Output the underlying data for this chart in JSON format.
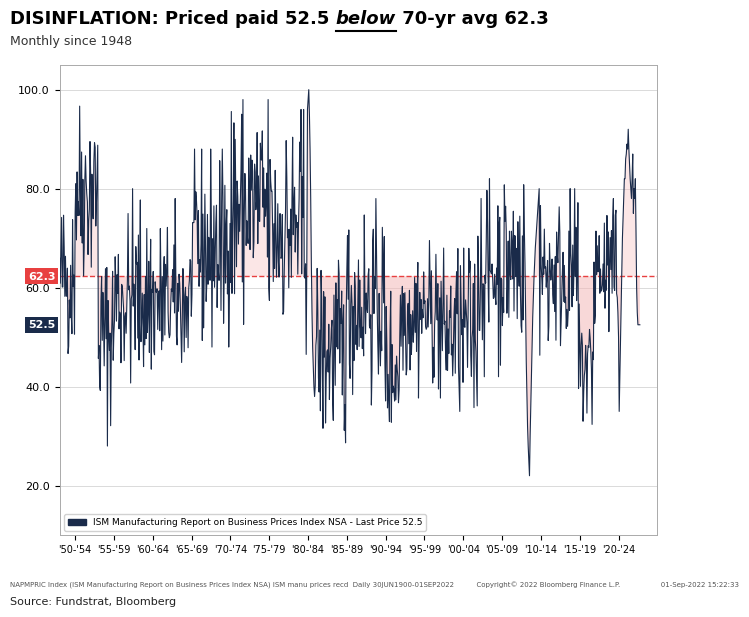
{
  "title_part1": "DISINFLATION: Priced paid 52.5 ",
  "title_underline": "below",
  "title_part2": " 70-yr avg 62.3",
  "subtitle": "Monthly since 1948",
  "avg_line": 62.3,
  "current_val": 52.5,
  "ylabel_values": [
    20.0,
    40.0,
    60.0,
    80.0,
    100.0
  ],
  "line_color": "#1a2b4a",
  "fill_color": "#f4b8b8",
  "avg_line_color": "#e84040",
  "label_62": "62.3",
  "label_52": "52.5",
  "source_text": "Source: Fundstrat, Bloomberg",
  "footnote": "NAPMPRIC Index (ISM Manufacturing Report on Business Prices Index NSA) ISM manu prices recd  Daily 30JUN1900-01SEP2022          Copyright© 2022 Bloomberg Finance L.P.                  01-Sep-2022 15:22:33",
  "legend_label": "ISM Manufacturing Report on Business Prices Index NSA - Last Price 52.5",
  "ylim": [
    10,
    105
  ],
  "xlim": [
    1948,
    2025
  ],
  "background_color": "#ffffff",
  "title_fontsize": 13,
  "subtitle_fontsize": 9,
  "tick_fontsize": 7,
  "ytick_fontsize": 8
}
